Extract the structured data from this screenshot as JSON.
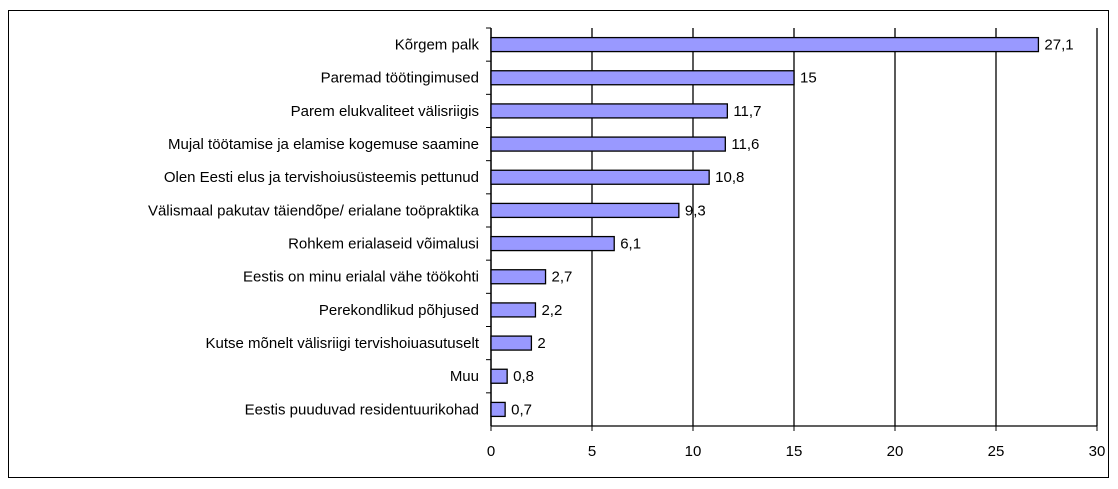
{
  "chart_data": {
    "type": "hbar",
    "categories": [
      "Kõrgem palk",
      "Paremad töötingimused",
      "Parem elukvaliteet välisriigis",
      "Mujal töötamise ja elamise kogemuse saamine",
      "Olen Eesti elus ja tervishoiusüsteemis pettunud",
      "Välismaal pakutav täiendõpe/ erialane toöpraktika",
      "Rohkem erialaseid võimalusi",
      "Eestis on minu erialal vähe töökohti",
      "Perekondlikud põhjused",
      "Kutse mõnelt välisriigi tervishoiuasutuselt",
      "Muu",
      "Eestis puuduvad residentuurikohad"
    ],
    "values": [
      27.1,
      15,
      11.7,
      11.6,
      10.8,
      9.3,
      6.1,
      2.7,
      2.2,
      2,
      0.8,
      0.7
    ],
    "value_labels": [
      "27,1",
      "15",
      "11,7",
      "11,6",
      "10,8",
      "9,3",
      "6,1",
      "2,7",
      "2,2",
      "2",
      "0,8",
      "0,7"
    ],
    "color": "#9999ff",
    "xlim": [
      0,
      30
    ],
    "xticks": [
      0,
      5,
      10,
      15,
      20,
      25,
      30
    ],
    "grid": true
  }
}
